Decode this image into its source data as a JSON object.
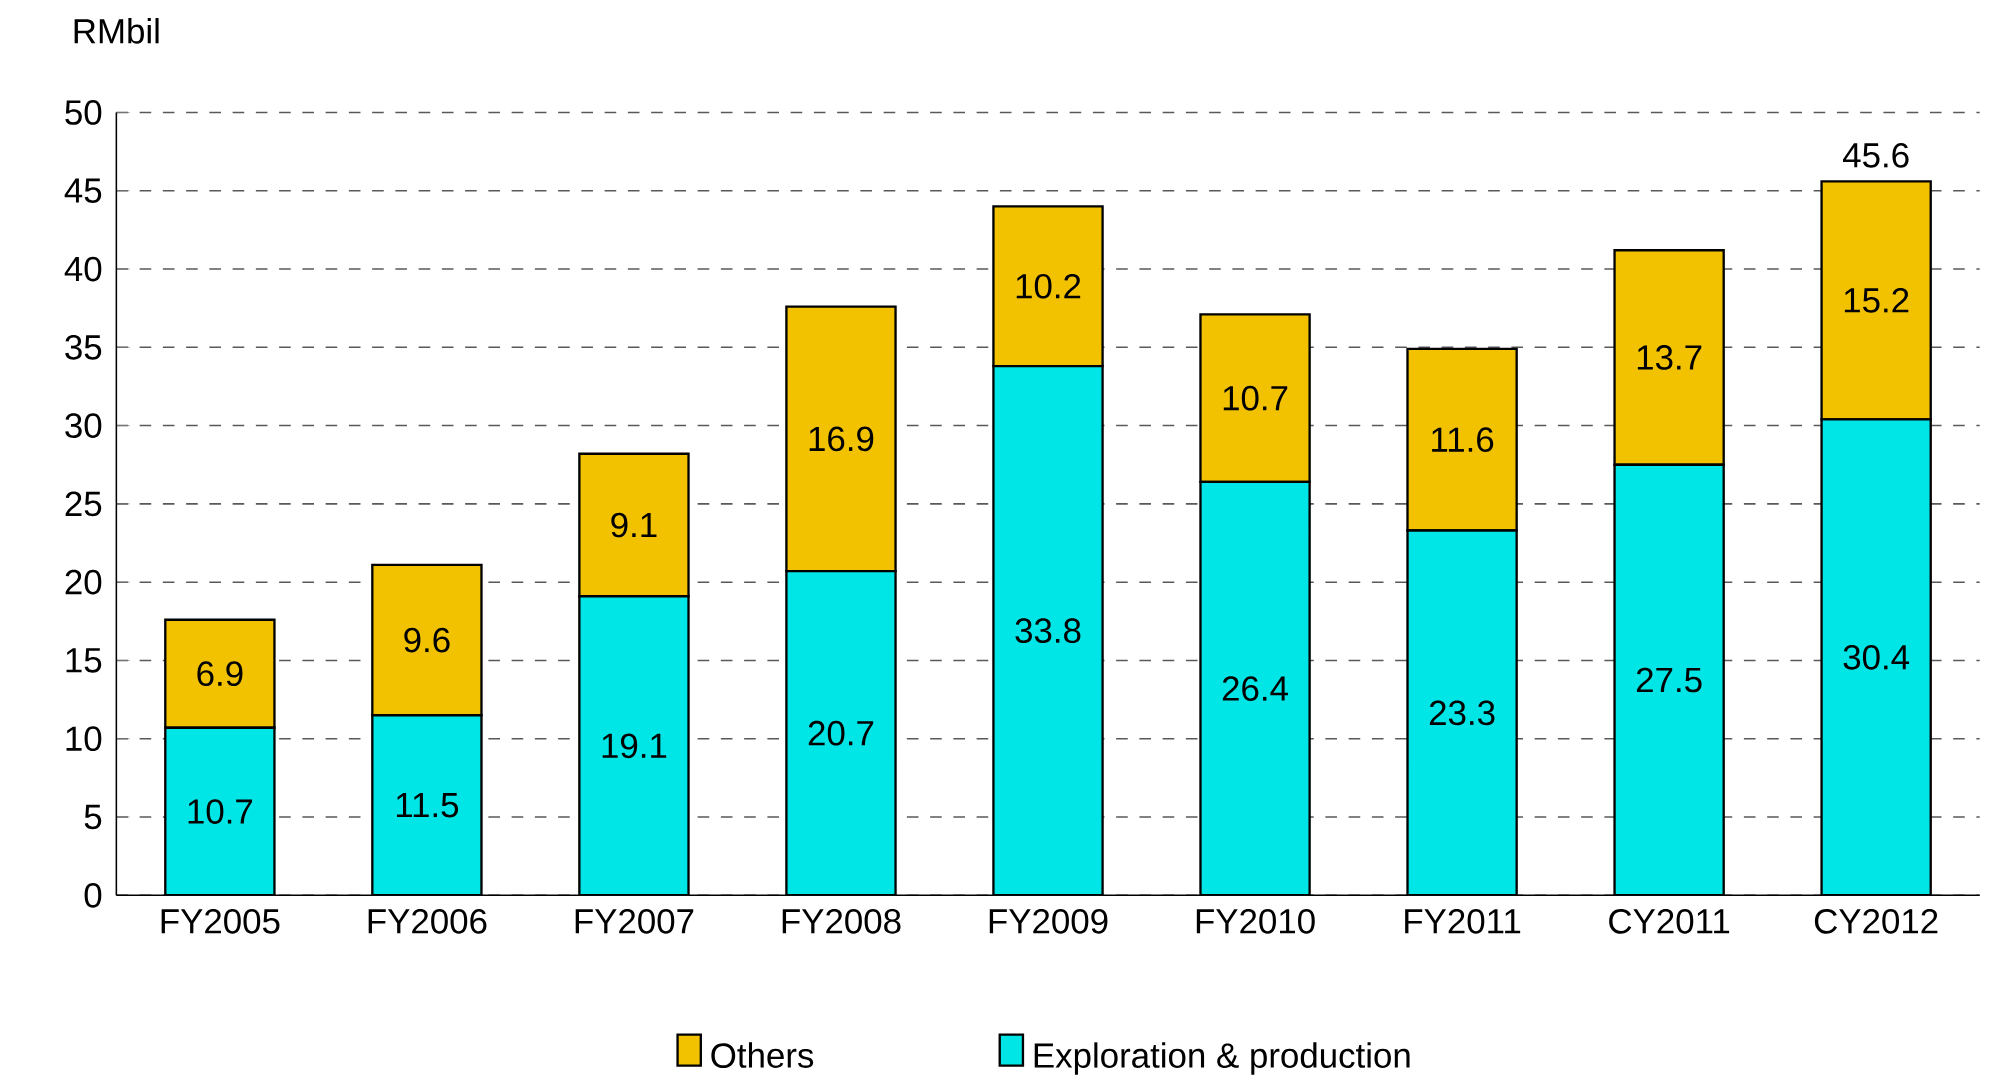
{
  "chart_data": {
    "type": "bar",
    "stacked": true,
    "ylabel": "RMbil",
    "categories": [
      "FY2005",
      "FY2006",
      "FY2007",
      "FY2008",
      "FY2009",
      "FY2010",
      "FY2011",
      "CY2011",
      "CY2012"
    ],
    "series": [
      {
        "name": "Exploration & production",
        "color": "#00e5e5",
        "values": [
          10.7,
          11.5,
          19.1,
          20.7,
          33.8,
          26.4,
          23.3,
          27.5,
          30.4
        ]
      },
      {
        "name": "Others",
        "color": "#f2c200",
        "values": [
          6.9,
          9.6,
          9.1,
          16.9,
          10.2,
          10.7,
          11.6,
          13.7,
          15.2
        ]
      }
    ],
    "totals": [
      null,
      null,
      null,
      null,
      null,
      null,
      null,
      null,
      "45.6"
    ],
    "ylim": [
      0,
      50
    ],
    "yticks": [
      0,
      5,
      10,
      15,
      20,
      25,
      30,
      35,
      40,
      45,
      50
    ],
    "grid": "y",
    "legend": "bottom",
    "data_labels": true
  }
}
